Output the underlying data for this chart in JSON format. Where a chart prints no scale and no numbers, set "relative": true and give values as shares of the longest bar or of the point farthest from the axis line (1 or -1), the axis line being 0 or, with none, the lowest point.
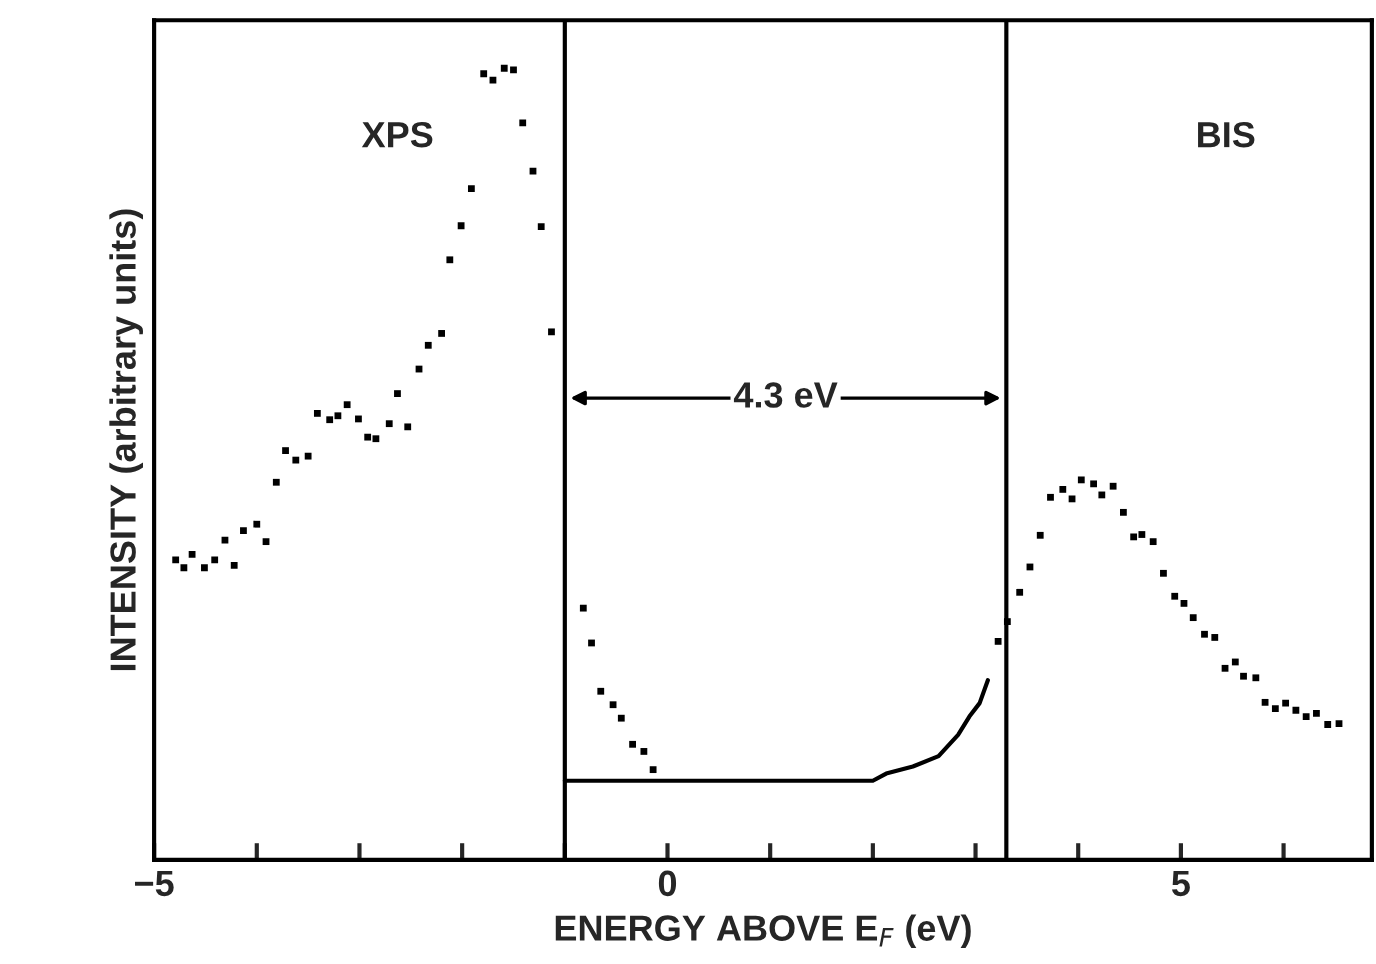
{
  "chart_data": {
    "type": "scatter",
    "relative": true,
    "xlabel": "ENERGY ABOVE E$_{F}$ (eV)",
    "ylabel": "INTENSITY (arbitrary units)",
    "xlim": [
      -5,
      6.86
    ],
    "xticks": [
      {
        "value": -5,
        "label": "−5"
      },
      {
        "value": -4,
        "label": null
      },
      {
        "value": -3,
        "label": null
      },
      {
        "value": -2,
        "label": null
      },
      {
        "value": -1,
        "label": null
      },
      0,
      {
        "value": 1,
        "label": null
      },
      {
        "value": 2,
        "label": null
      },
      {
        "value": 3,
        "label": null
      },
      {
        "value": 4,
        "label": null
      },
      5,
      {
        "value": 6,
        "label": null
      }
    ],
    "marker": "square",
    "grid": false,
    "annotations": [
      "XPS",
      "BIS",
      "4.3 eV"
    ],
    "ref_lines": [
      {
        "axis": "x",
        "value": -1.0,
        "color": "#000000"
      },
      {
        "axis": "x",
        "value": 3.3,
        "color": "#000000"
      }
    ],
    "series": [
      {
        "color": "#000000",
        "x": [
          -4.79,
          -4.71,
          -4.63,
          -4.51,
          -4.41,
          -4.31,
          -4.22,
          -4.13,
          -4.0,
          -3.91,
          -3.81,
          -3.72,
          -3.62,
          -3.5,
          -3.41,
          -3.29,
          -3.21,
          -3.12,
          -3.01,
          -2.92,
          -2.84,
          -2.71,
          -2.63,
          -2.53,
          -2.42,
          -2.33,
          -2.2,
          -2.12,
          -2.01,
          -1.91,
          -1.79,
          -1.7,
          -1.59,
          -1.5,
          -1.41,
          -1.31,
          -1.23,
          -1.13
        ],
        "values": [
          0.379,
          0.369,
          0.386,
          0.369,
          0.379,
          0.404,
          0.372,
          0.416,
          0.424,
          0.402,
          0.477,
          0.517,
          0.505,
          0.51,
          0.564,
          0.556,
          0.561,
          0.575,
          0.557,
          0.534,
          0.532,
          0.551,
          0.589,
          0.547,
          0.62,
          0.65,
          0.665,
          0.758,
          0.801,
          0.848,
          0.993,
          0.985,
          1.0,
          0.998,
          0.931,
          0.87,
          0.8,
          0.667
        ]
      },
      {
        "color": "#000000",
        "x": [
          -0.82,
          -0.74,
          -0.65,
          -0.53,
          -0.45,
          -0.34,
          -0.23,
          -0.14
        ],
        "values": [
          0.318,
          0.274,
          0.213,
          0.196,
          0.179,
          0.146,
          0.137,
          0.114
        ]
      },
      {
        "type": "line",
        "color": "#000000",
        "marker": "none",
        "x": [
          -1.0,
          -0.5,
          0.0,
          0.5,
          1.0,
          1.5,
          2.0,
          2.13,
          2.39,
          2.64,
          2.83,
          2.94,
          3.04,
          3.12
        ],
        "values": [
          0.1,
          0.1,
          0.1,
          0.1,
          0.1,
          0.1,
          0.1,
          0.109,
          0.118,
          0.131,
          0.158,
          0.181,
          0.198,
          0.227
        ]
      },
      {
        "color": "#000000",
        "x": [
          3.22,
          3.31,
          3.43,
          3.53,
          3.63,
          3.73,
          3.85,
          3.94,
          4.03,
          4.15,
          4.23,
          4.34,
          4.44,
          4.54,
          4.62,
          4.73,
          4.83,
          4.94,
          5.03,
          5.12,
          5.23,
          5.33,
          5.43,
          5.53,
          5.61,
          5.73,
          5.82,
          5.92,
          6.02,
          6.12,
          6.22,
          6.32,
          6.43,
          6.54
        ],
        "values": [
          0.276,
          0.301,
          0.338,
          0.37,
          0.41,
          0.458,
          0.468,
          0.456,
          0.48,
          0.475,
          0.461,
          0.472,
          0.439,
          0.408,
          0.411,
          0.402,
          0.362,
          0.333,
          0.324,
          0.306,
          0.285,
          0.281,
          0.242,
          0.25,
          0.232,
          0.23,
          0.199,
          0.191,
          0.198,
          0.189,
          0.181,
          0.185,
          0.171,
          0.172
        ]
      }
    ]
  }
}
